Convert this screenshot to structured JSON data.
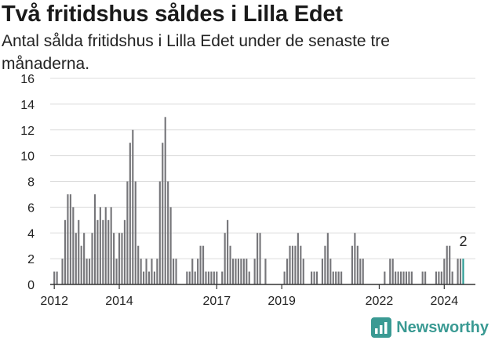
{
  "title": "Två fritidshus såldes i Lilla Edet",
  "subtitle": "Antal sålda fritidshus i Lilla Edet under de senaste tre månaderna.",
  "brand": {
    "name": "Newsworthy",
    "icon": "newsworthy-logo-icon",
    "color": "#3a9a93"
  },
  "chart_data": {
    "type": "bar",
    "title": "",
    "xlabel": "",
    "ylabel": "",
    "ylim": [
      0,
      16
    ],
    "yticks": [
      0,
      2,
      4,
      6,
      8,
      10,
      12,
      14,
      16
    ],
    "grid": true,
    "legend": "none",
    "x_start": "2011-12",
    "x_end": "2024-12",
    "bar_color": "#76767a",
    "highlight_color": "#2a9c94",
    "xticks": [
      {
        "label": "2012",
        "month": "2012-01"
      },
      {
        "label": "2014",
        "month": "2014-01"
      },
      {
        "label": "2017",
        "month": "2017-01"
      },
      {
        "label": "2019",
        "month": "2019-01"
      },
      {
        "label": "2022",
        "month": "2022-01"
      },
      {
        "label": "2024",
        "month": "2024-01"
      }
    ],
    "values": [
      0,
      1,
      1,
      0,
      2,
      5,
      7,
      7,
      6,
      4,
      5,
      3,
      4,
      2,
      2,
      4,
      7,
      5,
      6,
      5,
      6,
      5,
      6,
      4,
      2,
      4,
      4,
      5,
      8,
      11,
      12,
      8,
      3,
      2,
      1,
      2,
      1,
      2,
      1,
      2,
      8,
      11,
      13,
      8,
      6,
      2,
      2,
      0,
      0,
      0,
      1,
      1,
      2,
      1,
      2,
      3,
      3,
      1,
      1,
      1,
      1,
      1,
      0,
      1,
      4,
      5,
      3,
      2,
      2,
      2,
      2,
      2,
      2,
      1,
      0,
      2,
      4,
      4,
      0,
      2,
      0,
      0,
      0,
      0,
      0,
      0,
      1,
      2,
      3,
      3,
      3,
      4,
      3,
      2,
      0,
      0,
      1,
      1,
      1,
      0,
      2,
      3,
      4,
      2,
      1,
      1,
      1,
      1,
      0,
      0,
      0,
      3,
      4,
      3,
      2,
      2,
      0,
      0,
      0,
      0,
      0,
      0,
      0,
      1,
      0,
      2,
      2,
      1,
      1,
      1,
      1,
      1,
      1,
      1,
      0,
      0,
      0,
      1,
      1,
      0,
      0,
      0,
      1,
      1,
      1,
      2,
      3,
      3,
      1,
      0,
      2,
      2,
      2
    ],
    "highlight_last": true,
    "annotation": {
      "label": "2",
      "value": 2
    }
  }
}
